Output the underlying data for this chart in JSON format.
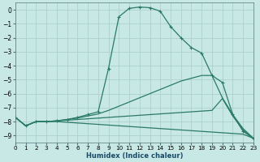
{
  "xlabel": "Humidex (Indice chaleur)",
  "background_color": "#c8e8e5",
  "grid_color": "#a8ccca",
  "line_color": "#2a7a6a",
  "xlim": [
    0,
    23
  ],
  "ylim": [
    -9.5,
    0.5
  ],
  "yticks": [
    0,
    -1,
    -2,
    -3,
    -4,
    -5,
    -6,
    -7,
    -8,
    -9
  ],
  "xticks": [
    0,
    1,
    2,
    3,
    4,
    5,
    6,
    7,
    8,
    9,
    10,
    11,
    12,
    13,
    14,
    15,
    16,
    17,
    18,
    19,
    20,
    21,
    22,
    23
  ],
  "curve1_x": [
    0,
    1,
    2,
    3,
    4,
    5,
    6,
    7,
    8,
    9,
    10,
    11,
    12,
    13,
    14,
    15,
    16,
    17,
    18,
    19,
    20,
    21,
    22,
    23
  ],
  "curve1_y": [
    -7.7,
    -8.3,
    -8.0,
    -8.0,
    -7.95,
    -7.85,
    -7.7,
    -7.5,
    -7.3,
    -4.2,
    -0.5,
    0.1,
    0.2,
    0.15,
    -0.1,
    -1.2,
    -2.0,
    -2.7,
    -3.1,
    -4.7,
    -5.2,
    -7.5,
    -8.7,
    -9.2
  ],
  "curve2_x": [
    0,
    1,
    2,
    3,
    4,
    5,
    6,
    7,
    8,
    9,
    10,
    11,
    12,
    13,
    14,
    15,
    16,
    17,
    18,
    19,
    20,
    21,
    22,
    23
  ],
  "curve2_y": [
    -7.7,
    -8.3,
    -8.0,
    -8.0,
    -7.95,
    -7.85,
    -7.75,
    -7.6,
    -7.45,
    -7.2,
    -6.9,
    -6.6,
    -6.3,
    -6.0,
    -5.7,
    -5.4,
    -5.1,
    -4.9,
    -4.7,
    -4.7,
    -6.3,
    -7.5,
    -8.5,
    -9.2
  ],
  "curve3_x": [
    0,
    1,
    2,
    3,
    4,
    5,
    6,
    7,
    8,
    9,
    10,
    11,
    12,
    13,
    14,
    15,
    16,
    17,
    18,
    19,
    20,
    21,
    22,
    23
  ],
  "curve3_y": [
    -7.7,
    -8.3,
    -8.0,
    -8.0,
    -7.95,
    -7.9,
    -7.85,
    -7.8,
    -7.75,
    -7.7,
    -7.65,
    -7.6,
    -7.55,
    -7.5,
    -7.45,
    -7.4,
    -7.35,
    -7.3,
    -7.25,
    -7.2,
    -6.35,
    -7.6,
    -8.6,
    -9.2
  ],
  "curve4_x": [
    0,
    1,
    2,
    3,
    4,
    5,
    6,
    7,
    8,
    9,
    10,
    11,
    12,
    13,
    14,
    15,
    16,
    17,
    18,
    19,
    20,
    21,
    22,
    23
  ],
  "curve4_y": [
    -7.7,
    -8.3,
    -8.0,
    -8.0,
    -8.0,
    -8.05,
    -8.1,
    -8.15,
    -8.2,
    -8.25,
    -8.3,
    -8.35,
    -8.4,
    -8.45,
    -8.5,
    -8.55,
    -8.6,
    -8.65,
    -8.7,
    -8.75,
    -8.8,
    -8.85,
    -8.9,
    -9.2
  ]
}
